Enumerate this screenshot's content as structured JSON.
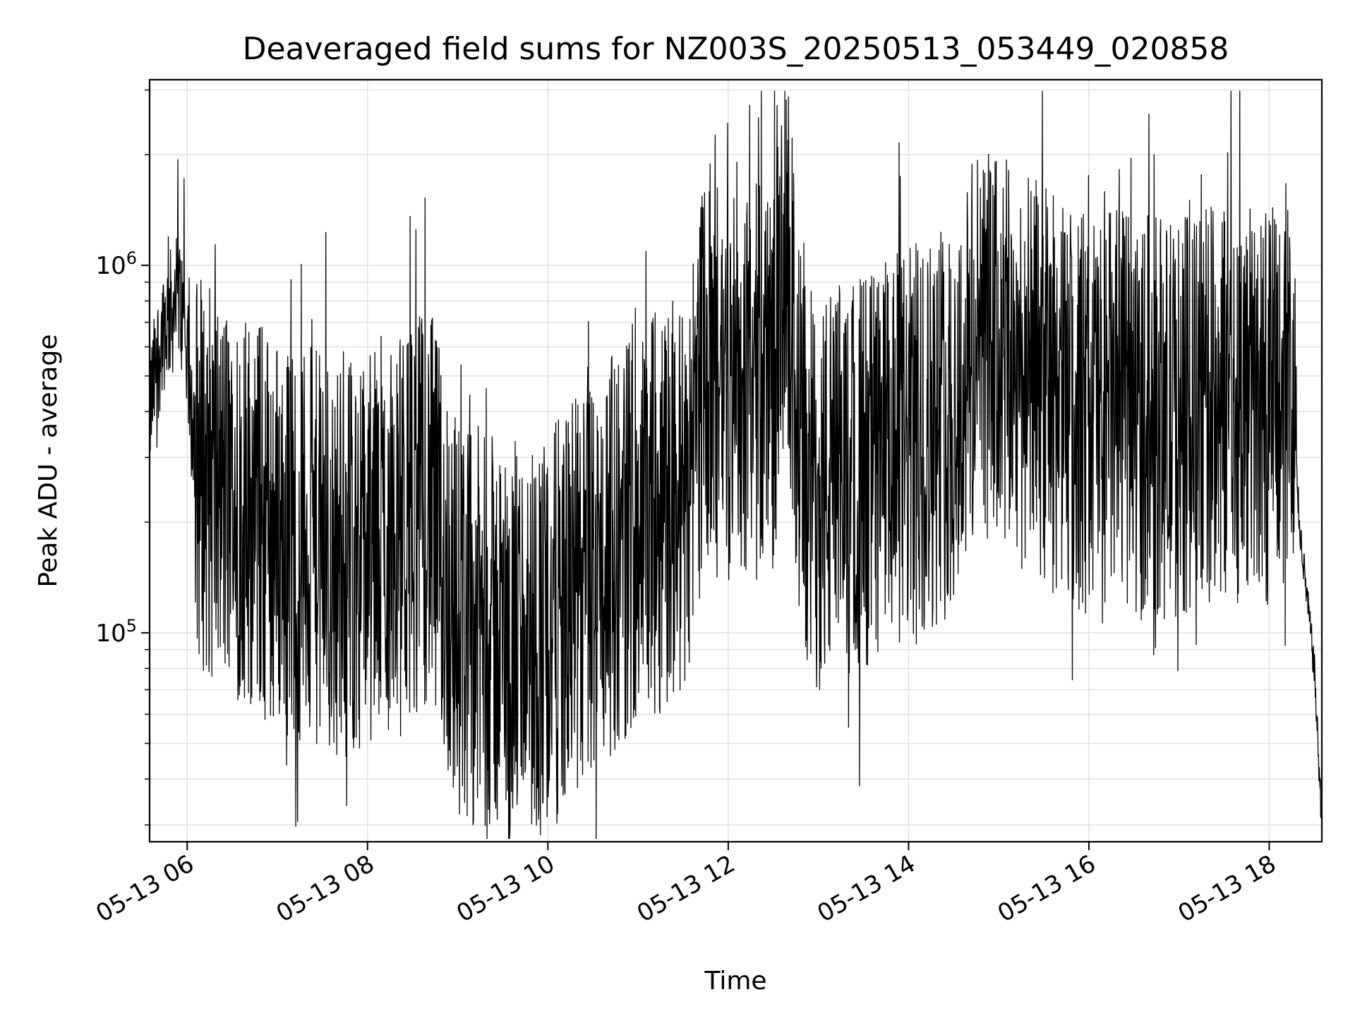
{
  "chart_data": {
    "type": "line",
    "title": "Deaveraged field sums for NZ003S_20250513_053449_020858",
    "xlabel": "Time",
    "ylabel": "Peak ADU - average",
    "x_axis": "datetime",
    "x_range": [
      "2025-05-13 05:35",
      "2025-05-13 18:35"
    ],
    "x_ticks": [
      "05-13 06",
      "05-13 08",
      "05-13 10",
      "05-13 12",
      "05-13 14",
      "05-13 16",
      "05-13 18"
    ],
    "y_scale": "log",
    "y_range": [
      27000,
      3200000
    ],
    "y_ticks": [
      {
        "base": "10",
        "exponent": "5",
        "value": 100000
      },
      {
        "base": "10",
        "exponent": "6",
        "value": 1000000
      }
    ],
    "grid": true,
    "legend": "none",
    "line_color": "#000000",
    "series": [
      {
        "points": [
          [
            "2025-05-13 05:35",
            400000
          ],
          [
            "2025-05-13 05:40",
            550000
          ],
          [
            "2025-05-13 05:45",
            700000
          ],
          [
            "2025-05-13 05:50",
            750000
          ],
          [
            "2025-05-13 05:55",
            820000
          ],
          [
            "2025-05-13 06:00",
            560000
          ],
          [
            "2025-05-13 06:05",
            300000
          ],
          [
            "2025-05-13 06:20",
            240000
          ],
          [
            "2025-05-13 06:40",
            220000
          ],
          [
            "2025-05-13 07:00",
            190000
          ],
          [
            "2025-05-13 07:20",
            170000
          ],
          [
            "2025-05-13 07:40",
            160000
          ],
          [
            "2025-05-13 08:00",
            170000
          ],
          [
            "2025-05-13 08:20",
            180000
          ],
          [
            "2025-05-13 08:40",
            230000
          ],
          [
            "2025-05-13 09:00",
            110000
          ],
          [
            "2025-05-13 09:30",
            95000
          ],
          [
            "2025-05-13 10:00",
            100000
          ],
          [
            "2025-05-13 10:30",
            140000
          ],
          [
            "2025-05-13 11:00",
            200000
          ],
          [
            "2025-05-13 11:30",
            230000
          ],
          [
            "2025-05-13 11:45",
            550000
          ],
          [
            "2025-05-13 12:00",
            480000
          ],
          [
            "2025-05-13 12:30",
            520000
          ],
          [
            "2025-05-13 12:40",
            900000
          ],
          [
            "2025-05-13 12:50",
            260000
          ],
          [
            "2025-05-13 13:00",
            240000
          ],
          [
            "2025-05-13 13:30",
            280000
          ],
          [
            "2025-05-13 14:00",
            320000
          ],
          [
            "2025-05-13 14:30",
            400000
          ],
          [
            "2025-05-13 14:50",
            620000
          ],
          [
            "2025-05-13 15:00",
            560000
          ],
          [
            "2025-05-13 15:30",
            480000
          ],
          [
            "2025-05-13 15:50",
            400000
          ],
          [
            "2025-05-13 16:00",
            420000
          ],
          [
            "2025-05-13 16:30",
            400000
          ],
          [
            "2025-05-13 17:00",
            380000
          ],
          [
            "2025-05-13 17:30",
            430000
          ],
          [
            "2025-05-13 18:00",
            420000
          ],
          [
            "2025-05-13 18:15",
            480000
          ],
          [
            "2025-05-13 18:20",
            200000
          ],
          [
            "2025-05-13 18:30",
            80000
          ],
          [
            "2025-05-13 18:35",
            30000
          ]
        ]
      }
    ]
  }
}
